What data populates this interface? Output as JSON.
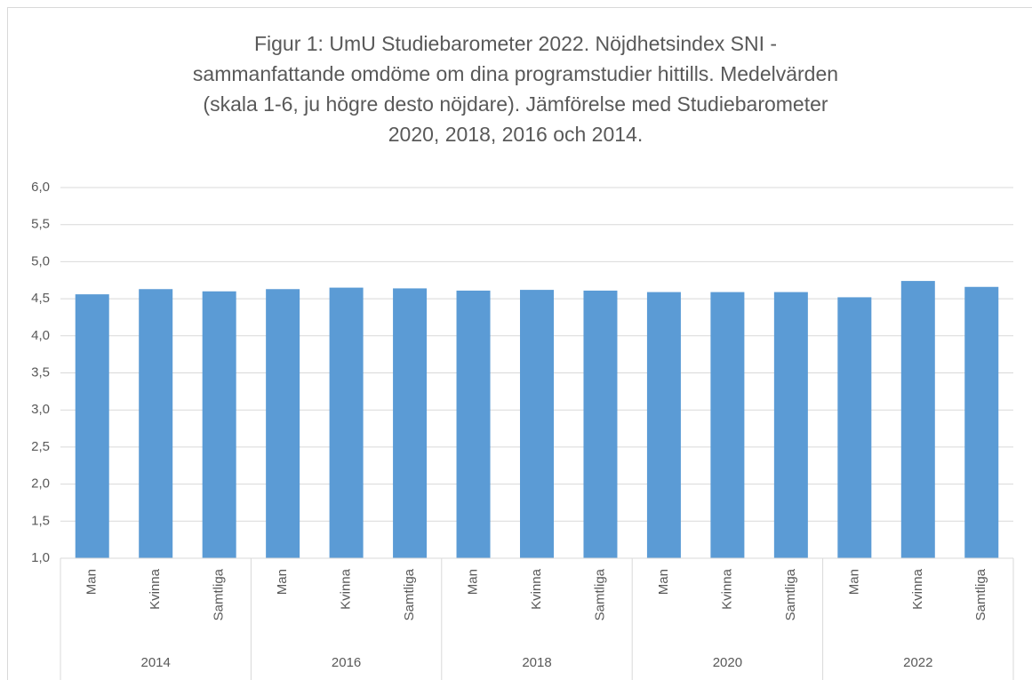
{
  "chart_data": {
    "type": "bar",
    "title": "Figur 1: UmU Studiebarometer 2022. Nöjdhetsindex SNI - sammanfattande omdöme om dina programstudier hittills. Medelvärden (skala 1-6, ju högre desto nöjdare). Jämförelse med Studiebarometer 2020, 2018, 2016 och 2014.",
    "categories": [
      "Man",
      "Kvinna",
      "Samtliga",
      "Man",
      "Kvinna",
      "Samtliga",
      "Man",
      "Kvinna",
      "Samtliga",
      "Man",
      "Kvinna",
      "Samtliga",
      "Man",
      "Kvinna",
      "Samtliga"
    ],
    "groups": [
      "2014",
      "2016",
      "2018",
      "2020",
      "2022"
    ],
    "values": [
      4.56,
      4.63,
      4.6,
      4.63,
      4.65,
      4.64,
      4.61,
      4.62,
      4.61,
      4.59,
      4.59,
      4.59,
      4.52,
      4.74,
      4.66
    ],
    "color": "#5b9bd5",
    "ylim": [
      1,
      6
    ],
    "yticks": [
      {
        "value": 1,
        "label": "1,0"
      },
      {
        "value": 1.5,
        "label": "1,5"
      },
      {
        "value": 2,
        "label": "2,0"
      },
      {
        "value": 2.5,
        "label": "2,5"
      },
      {
        "value": 3,
        "label": "3,0"
      },
      {
        "value": 3.5,
        "label": "3,5"
      },
      {
        "value": 4,
        "label": "4,0"
      },
      {
        "value": 4.5,
        "label": "4,5"
      },
      {
        "value": 5,
        "label": "5,0"
      },
      {
        "value": 5.5,
        "label": "5,5"
      },
      {
        "value": 6,
        "label": "6,0"
      }
    ],
    "grid": true
  }
}
